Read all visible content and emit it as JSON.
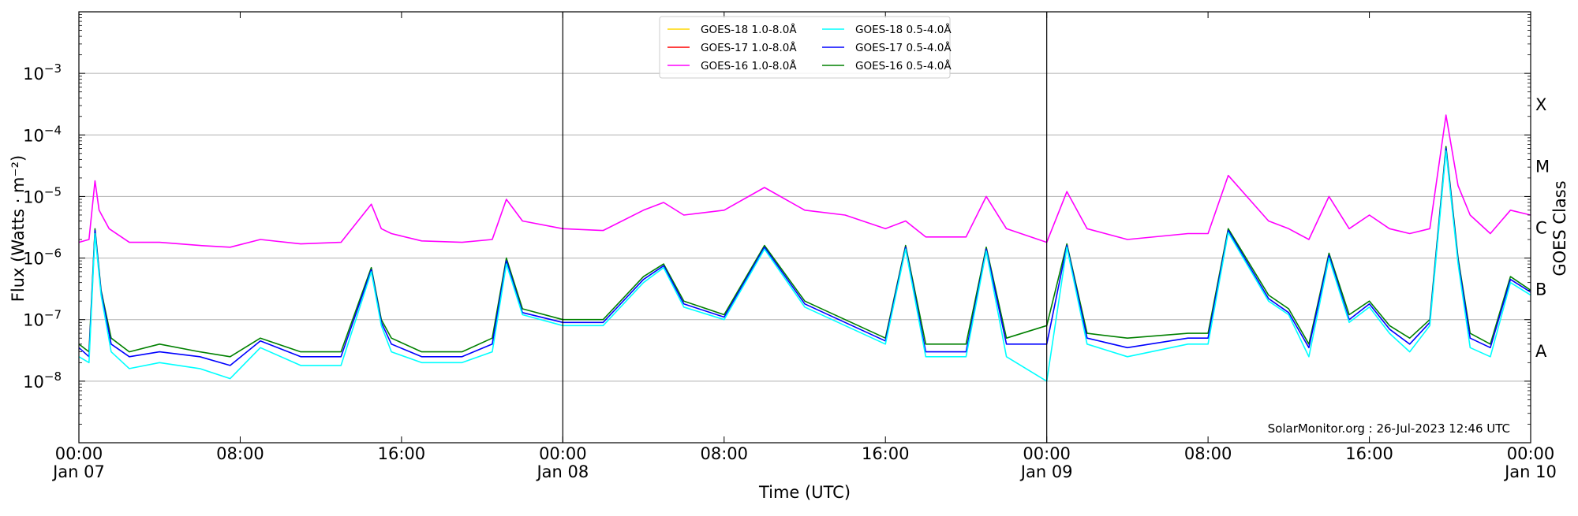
{
  "chart_data": {
    "type": "line",
    "title": "",
    "xlabel": "Time (UTC)",
    "ylabel": "Flux (Watts · m⁻²)",
    "y2label": "GOES Class",
    "yscale": "log",
    "ylim": [
      1e-09,
      0.01
    ],
    "xlim_hours": [
      0,
      72
    ],
    "grid": "horizontal at decades",
    "legend_position": "top-center",
    "credit": "SolarMonitor.org : 26-Jul-2023 12:46 UTC",
    "x_ticks": [
      {
        "hour": 0,
        "line1": "00:00",
        "line2": "Jan 07"
      },
      {
        "hour": 8,
        "line1": "08:00",
        "line2": ""
      },
      {
        "hour": 16,
        "line1": "16:00",
        "line2": ""
      },
      {
        "hour": 24,
        "line1": "00:00",
        "line2": "Jan 08"
      },
      {
        "hour": 32,
        "line1": "08:00",
        "line2": ""
      },
      {
        "hour": 40,
        "line1": "16:00",
        "line2": ""
      },
      {
        "hour": 48,
        "line1": "00:00",
        "line2": "Jan 09"
      },
      {
        "hour": 56,
        "line1": "08:00",
        "line2": ""
      },
      {
        "hour": 64,
        "line1": "16:00",
        "line2": ""
      },
      {
        "hour": 72,
        "line1": "00:00",
        "line2": "Jan 10"
      }
    ],
    "y_ticks": [
      {
        "exp": -8,
        "base": "10",
        "sup": "−8"
      },
      {
        "exp": -7,
        "base": "10",
        "sup": "−7"
      },
      {
        "exp": -6,
        "base": "10",
        "sup": "−6"
      },
      {
        "exp": -5,
        "base": "10",
        "sup": "−5"
      },
      {
        "exp": -4,
        "base": "10",
        "sup": "−4"
      },
      {
        "exp": -3,
        "base": "10",
        "sup": "−3"
      }
    ],
    "day_boundaries_hours": [
      24,
      48
    ],
    "goes_classes": [
      {
        "label": "A",
        "exp": -7.5
      },
      {
        "label": "B",
        "exp": -6.5
      },
      {
        "label": "C",
        "exp": -5.5
      },
      {
        "label": "M",
        "exp": -4.5
      },
      {
        "label": "X",
        "exp": -3.5
      }
    ],
    "legend": [
      {
        "name": "GOES-18 1.0-8.0Å",
        "color": "#FFD700"
      },
      {
        "name": "GOES-17 1.0-8.0Å",
        "color": "#FF0000"
      },
      {
        "name": "GOES-16 1.0-8.0Å",
        "color": "#FF00FF"
      },
      {
        "name": "GOES-18 0.5-4.0Å",
        "color": "#00FFFF"
      },
      {
        "name": "GOES-17 0.5-4.0Å",
        "color": "#0000FF"
      },
      {
        "name": "GOES-16 0.5-4.0Å",
        "color": "#008000"
      }
    ],
    "series": [
      {
        "name": "GOES-16 1.0-8.0Å",
        "color": "#FF00FF",
        "x_hours": [
          0,
          0.5,
          0.8,
          1.0,
          1.5,
          2.5,
          4,
          6,
          7.5,
          9,
          11,
          13,
          14.5,
          15,
          15.5,
          17,
          19,
          20.5,
          21.2,
          22,
          24,
          26,
          28,
          29,
          30,
          32,
          34,
          36,
          38,
          40,
          41,
          42,
          44,
          45,
          46,
          48,
          49,
          50,
          52,
          55,
          56,
          57,
          59,
          60,
          61,
          62,
          63,
          64,
          65,
          66,
          67,
          67.8,
          68.4,
          69,
          70,
          71,
          72
        ],
        "y": [
          1.8e-06,
          2e-06,
          1.8e-05,
          6e-06,
          3e-06,
          1.8e-06,
          1.8e-06,
          1.6e-06,
          1.5e-06,
          2e-06,
          1.7e-06,
          1.8e-06,
          7.5e-06,
          3e-06,
          2.5e-06,
          1.9e-06,
          1.8e-06,
          2e-06,
          9e-06,
          4e-06,
          3e-06,
          2.8e-06,
          6e-06,
          8e-06,
          5e-06,
          6e-06,
          1.4e-05,
          6e-06,
          5e-06,
          3e-06,
          4e-06,
          2.2e-06,
          2.2e-06,
          1e-05,
          3e-06,
          1.8e-06,
          1.2e-05,
          3e-06,
          2e-06,
          2.5e-06,
          2.5e-06,
          2.2e-05,
          4e-06,
          3e-06,
          2e-06,
          1e-05,
          3e-06,
          5e-06,
          3e-06,
          2.5e-06,
          3e-06,
          0.00021,
          1.5e-05,
          5e-06,
          2.5e-06,
          6e-06,
          5e-06
        ]
      },
      {
        "name": "GOES-16 0.5-4.0Å",
        "color": "#008000",
        "x_hours": [
          0,
          0.5,
          0.8,
          1.1,
          1.6,
          2.5,
          4,
          6,
          7.5,
          9,
          11,
          13,
          14.5,
          15,
          15.5,
          17,
          19,
          20.5,
          21.2,
          22,
          24,
          26,
          28,
          29,
          30,
          32,
          34,
          36,
          38,
          40,
          41,
          42,
          44,
          45,
          46,
          48,
          49,
          50,
          52,
          55,
          56,
          57,
          59,
          60,
          61,
          62,
          63,
          64,
          65,
          66,
          67,
          67.8,
          68.4,
          69,
          70,
          71,
          72
        ],
        "y": [
          4e-08,
          3e-08,
          3e-06,
          3e-07,
          5e-08,
          3e-08,
          4e-08,
          3e-08,
          2.5e-08,
          5e-08,
          3e-08,
          3e-08,
          7e-07,
          1e-07,
          5e-08,
          3e-08,
          3e-08,
          5e-08,
          1e-06,
          1.5e-07,
          1e-07,
          1e-07,
          5e-07,
          8e-07,
          2e-07,
          1.2e-07,
          1.6e-06,
          2e-07,
          1e-07,
          5e-08,
          1.6e-06,
          4e-08,
          4e-08,
          1.5e-06,
          5e-08,
          8e-08,
          1.7e-06,
          6e-08,
          5e-08,
          6e-08,
          6e-08,
          3e-06,
          2.5e-07,
          1.5e-07,
          4e-08,
          1.2e-06,
          1.2e-07,
          2e-07,
          8e-08,
          5e-08,
          1e-07,
          6.5e-05,
          1e-06,
          6e-08,
          4e-08,
          5e-07,
          3e-07
        ]
      },
      {
        "name": "GOES-17 0.5-4.0Å",
        "color": "#0000FF",
        "x_hours": [
          0,
          0.5,
          0.8,
          1.1,
          1.6,
          2.5,
          4,
          6,
          7.5,
          9,
          11,
          13,
          14.5,
          15,
          15.5,
          17,
          19,
          20.5,
          21.2,
          22,
          24,
          26,
          28,
          29,
          30,
          32,
          34,
          36,
          38,
          40,
          41,
          42,
          44,
          45,
          46,
          48,
          49,
          50,
          52,
          55,
          56,
          57,
          59,
          60,
          61,
          62,
          63,
          64,
          65,
          66,
          67,
          67.8,
          68.4,
          69,
          70,
          71,
          72
        ],
        "y": [
          3.5e-08,
          2.5e-08,
          2.8e-06,
          2.8e-07,
          4e-08,
          2.5e-08,
          3e-08,
          2.5e-08,
          1.8e-08,
          4.5e-08,
          2.5e-08,
          2.5e-08,
          6.5e-07,
          9e-08,
          4e-08,
          2.5e-08,
          2.5e-08,
          4e-08,
          9e-07,
          1.3e-07,
          9e-08,
          9e-08,
          4.5e-07,
          7.5e-07,
          1.8e-07,
          1.1e-07,
          1.5e-06,
          1.8e-07,
          9e-08,
          4.5e-08,
          1.5e-06,
          3e-08,
          3e-08,
          1.4e-06,
          4e-08,
          4e-08,
          1.6e-06,
          5e-08,
          3.5e-08,
          5e-08,
          5e-08,
          2.8e-06,
          2.2e-07,
          1.3e-07,
          3.5e-08,
          1.1e-06,
          1e-07,
          1.8e-07,
          7e-08,
          4e-08,
          9e-08,
          6e-05,
          9e-07,
          5e-08,
          3.5e-08,
          4.5e-07,
          2.8e-07
        ]
      },
      {
        "name": "GOES-18 0.5-4.0Å",
        "color": "#00FFFF",
        "x_hours": [
          0,
          0.5,
          0.8,
          1.1,
          1.6,
          2.5,
          4,
          6,
          7.5,
          9,
          11,
          13,
          14.5,
          15,
          15.5,
          17,
          19,
          20.5,
          21.2,
          22,
          24,
          26,
          28,
          29,
          30,
          32,
          34,
          36,
          38,
          40,
          41,
          42,
          44,
          45,
          46,
          48,
          49,
          50,
          52,
          55,
          56,
          57,
          59,
          60,
          61,
          62,
          63,
          64,
          65,
          66,
          67,
          67.8,
          68.4,
          69,
          70,
          71,
          72
        ],
        "y": [
          2.5e-08,
          2e-08,
          2.5e-06,
          2.5e-07,
          3e-08,
          1.6e-08,
          2e-08,
          1.6e-08,
          1.1e-08,
          3.5e-08,
          1.8e-08,
          1.8e-08,
          6e-07,
          8e-08,
          3e-08,
          2e-08,
          2e-08,
          3e-08,
          8e-07,
          1.2e-07,
          8e-08,
          8e-08,
          4e-07,
          7e-07,
          1.6e-07,
          1e-07,
          1.4e-06,
          1.6e-07,
          8e-08,
          4e-08,
          1.4e-06,
          2.5e-08,
          2.5e-08,
          1.3e-06,
          2.5e-08,
          1e-08,
          1.5e-06,
          4e-08,
          2.5e-08,
          4e-08,
          4e-08,
          2.6e-06,
          2e-07,
          1.2e-07,
          2.5e-08,
          1e-06,
          9e-08,
          1.6e-07,
          6e-08,
          3e-08,
          8e-08,
          5.5e-05,
          8e-07,
          3.5e-08,
          2.5e-08,
          4e-07,
          2.5e-07
        ]
      }
    ]
  }
}
